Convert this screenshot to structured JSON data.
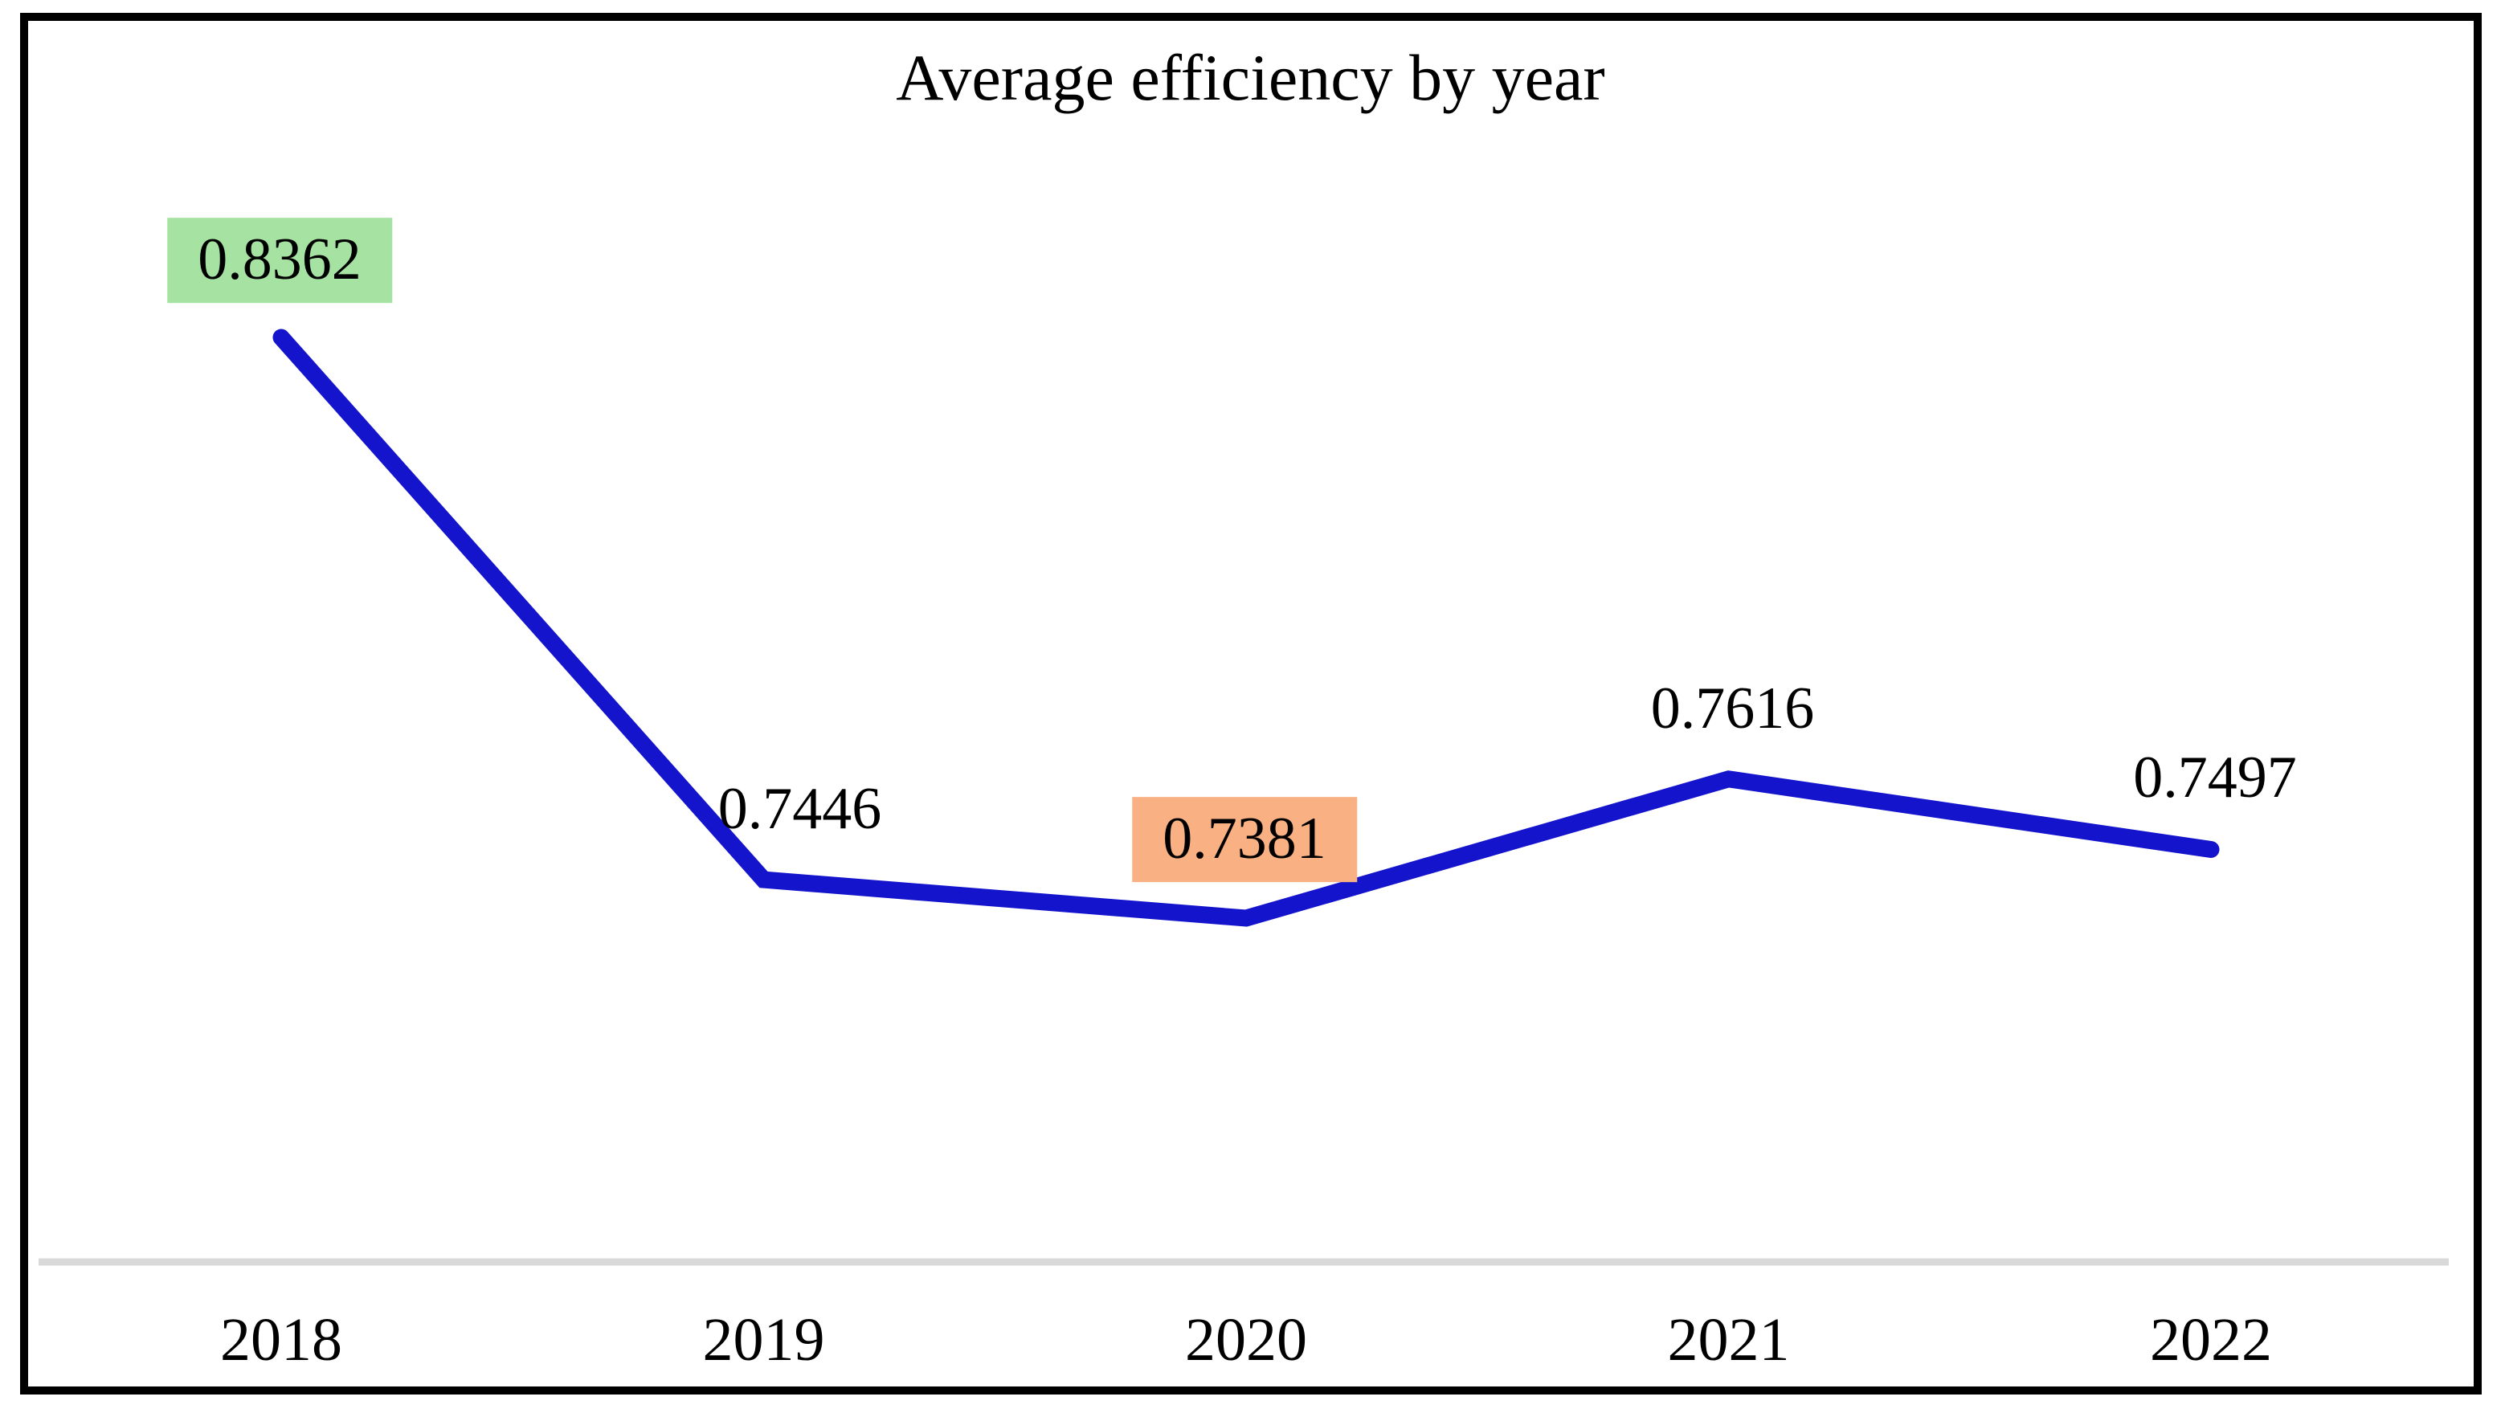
{
  "chart_data": {
    "type": "line",
    "title": "Average efficiency by year",
    "categories": [
      "2018",
      "2019",
      "2020",
      "2021",
      "2022"
    ],
    "series": [
      {
        "name": "Average efficiency",
        "values": [
          0.8362,
          0.7446,
          0.7381,
          0.7616,
          0.7497
        ]
      }
    ],
    "points": [
      {
        "category": "2018",
        "value": 0.8362,
        "label": "0.8362",
        "highlight_color": "#A6E3A2"
      },
      {
        "category": "2019",
        "value": 0.7446,
        "label": "0.7446",
        "highlight_color": null
      },
      {
        "category": "2020",
        "value": 0.7381,
        "label": "0.7381",
        "highlight_color": "#F9B183"
      },
      {
        "category": "2021",
        "value": 0.7616,
        "label": "0.7616",
        "highlight_color": null
      },
      {
        "category": "2022",
        "value": 0.7497,
        "label": "0.7497",
        "highlight_color": null
      }
    ],
    "line_color": "#1414CC",
    "axis_line_color": "#D9D9D9",
    "frame_color": "#000000",
    "label_text_color": "#000000",
    "xlabel": "",
    "ylabel": "",
    "ylim": [
      0.68,
      0.88
    ],
    "grid": false,
    "legend": false,
    "data_labels_shown": true,
    "y_axis_shown": false
  }
}
